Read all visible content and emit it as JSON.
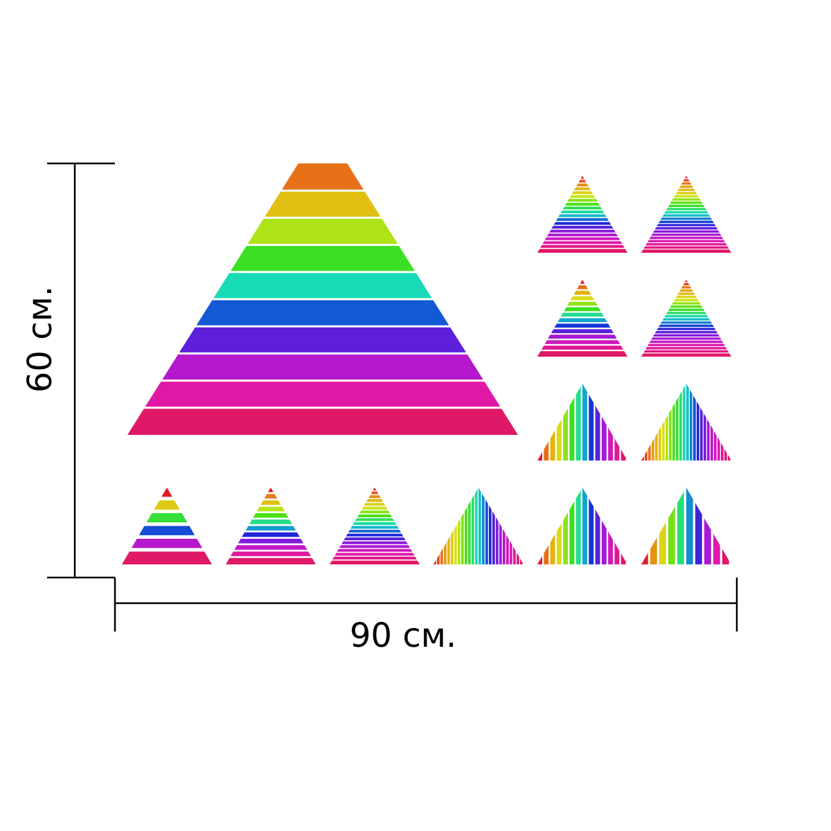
{
  "dimensions": {
    "height_label": "60 см.",
    "width_label": "90 см."
  },
  "colors": {
    "background": "#ffffff",
    "dimension_lines": "#000000",
    "band_separator": "#ffffff"
  },
  "palette": [
    "#e21a2a",
    "#e8a20f",
    "#d8e418",
    "#3fe014",
    "#14dcc8",
    "#1428d8",
    "#9a18dc",
    "#e018b4",
    "#e01868"
  ],
  "pieces": {
    "large_pyramid": {
      "stripes": 10,
      "orientation": "horizontal",
      "truncated": true
    },
    "right_grid": [
      {
        "name": "right-grid-triangle-r1c1",
        "stripes": 20,
        "orientation": "horizontal"
      },
      {
        "name": "right-grid-triangle-r1c2",
        "stripes": 24,
        "orientation": "horizontal"
      },
      {
        "name": "right-grid-triangle-r2c1",
        "stripes": 14,
        "orientation": "horizontal"
      },
      {
        "name": "right-grid-triangle-r2c2",
        "stripes": 24,
        "orientation": "horizontal"
      },
      {
        "name": "right-grid-triangle-r3c1",
        "stripes": 14,
        "orientation": "vertical"
      },
      {
        "name": "right-grid-triangle-r3c2",
        "stripes": 26,
        "orientation": "vertical"
      }
    ],
    "bottom_row": [
      {
        "name": "bottom-row-triangle-1",
        "stripes": 6,
        "orientation": "horizontal"
      },
      {
        "name": "bottom-row-triangle-2",
        "stripes": 12,
        "orientation": "horizontal"
      },
      {
        "name": "bottom-row-triangle-3",
        "stripes": 20,
        "orientation": "horizontal"
      },
      {
        "name": "bottom-row-triangle-4",
        "stripes": 26,
        "orientation": "vertical"
      },
      {
        "name": "bottom-row-triangle-5",
        "stripes": 14,
        "orientation": "vertical"
      },
      {
        "name": "bottom-row-triangle-6",
        "stripes": 10,
        "orientation": "vertical"
      }
    ]
  }
}
